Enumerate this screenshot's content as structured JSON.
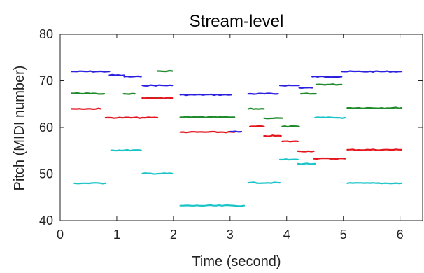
{
  "chart_data": {
    "type": "line",
    "title": "Stream-level",
    "xlabel": "Time (second)",
    "ylabel": "Pitch (MIDI number)",
    "xlim": [
      0,
      6.4
    ],
    "ylim": [
      40,
      80
    ],
    "xticks": [
      0,
      1,
      2,
      3,
      4,
      5,
      6
    ],
    "yticks": [
      40,
      50,
      60,
      70,
      80
    ],
    "grid": false,
    "legend": "none",
    "series": [
      {
        "color": "#2b1fe0",
        "segments": [
          {
            "x": [
              0.2,
              0.87
            ],
            "y": [
              72.0,
              72.0
            ]
          },
          {
            "x": [
              0.87,
              1.13
            ],
            "y": [
              71.2,
              71.2
            ]
          },
          {
            "x": [
              1.13,
              1.43
            ],
            "y": [
              70.9,
              70.9
            ]
          },
          {
            "x": [
              1.45,
              1.98
            ],
            "y": [
              69.0,
              69.0
            ]
          },
          {
            "x": [
              2.12,
              3.02
            ],
            "y": [
              67.0,
              67.0
            ]
          },
          {
            "x": [
              3.32,
              3.85
            ],
            "y": [
              67.2,
              67.2
            ]
          },
          {
            "x": [
              3.88,
              4.22
            ],
            "y": [
              69.0,
              69.0
            ]
          },
          {
            "x": [
              4.22,
              4.45
            ],
            "y": [
              68.5,
              68.5
            ]
          },
          {
            "x": [
              4.45,
              4.97
            ],
            "y": [
              70.9,
              70.9
            ]
          },
          {
            "x": [
              4.97,
              6.03
            ],
            "y": [
              72.0,
              72.0
            ]
          }
        ]
      },
      {
        "color": "#1e8a2a",
        "segments": [
          {
            "x": [
              0.2,
              0.52
            ],
            "y": [
              67.3,
              67.3
            ]
          },
          {
            "x": [
              0.52,
              0.78
            ],
            "y": [
              67.2,
              67.2
            ]
          },
          {
            "x": [
              1.12,
              1.32
            ],
            "y": [
              67.2,
              67.2
            ]
          },
          {
            "x": [
              1.45,
              1.73
            ],
            "y": [
              66.3,
              66.3
            ]
          },
          {
            "x": [
              1.72,
              1.98
            ],
            "y": [
              72.1,
              72.1
            ]
          },
          {
            "x": [
              2.12,
              3.08
            ],
            "y": [
              62.2,
              62.2
            ]
          },
          {
            "x": [
              3.32,
              3.6
            ],
            "y": [
              64.0,
              64.0
            ]
          },
          {
            "x": [
              3.6,
              3.92
            ],
            "y": [
              62.0,
              62.0
            ]
          },
          {
            "x": [
              3.92,
              4.22
            ],
            "y": [
              60.2,
              60.2
            ]
          },
          {
            "x": [
              4.25,
              4.52
            ],
            "y": [
              67.2,
              67.2
            ]
          },
          {
            "x": [
              4.52,
              4.97
            ],
            "y": [
              69.2,
              69.2
            ]
          },
          {
            "x": [
              5.07,
              6.03
            ],
            "y": [
              64.2,
              64.2
            ]
          }
        ]
      },
      {
        "color": "#e3161e",
        "segments": [
          {
            "x": [
              0.2,
              0.72
            ],
            "y": [
              64.0,
              64.0
            ]
          },
          {
            "x": [
              0.8,
              1.45
            ],
            "y": [
              62.1,
              62.1
            ]
          },
          {
            "x": [
              1.45,
              1.72
            ],
            "y": [
              62.1,
              62.1
            ]
          },
          {
            "x": [
              1.45,
              1.98
            ],
            "y": [
              66.3,
              66.3
            ]
          },
          {
            "x": [
              2.12,
              3.08
            ],
            "y": [
              59.0,
              59.0
            ]
          },
          {
            "x": [
              3.35,
              3.6
            ],
            "y": [
              60.2,
              60.2
            ]
          },
          {
            "x": [
              3.6,
              3.9
            ],
            "y": [
              58.2,
              58.2
            ]
          },
          {
            "x": [
              3.92,
              4.2
            ],
            "y": [
              57.0,
              57.0
            ]
          },
          {
            "x": [
              4.2,
              4.48
            ],
            "y": [
              54.9,
              54.9
            ]
          },
          {
            "x": [
              4.48,
              5.03
            ],
            "y": [
              53.3,
              53.3
            ]
          },
          {
            "x": [
              5.07,
              6.03
            ],
            "y": [
              55.2,
              55.2
            ]
          }
        ]
      },
      {
        "color": "#19c4c8",
        "segments": [
          {
            "x": [
              0.25,
              0.8
            ],
            "y": [
              48.0,
              48.0
            ]
          },
          {
            "x": [
              0.9,
              1.43
            ],
            "y": [
              55.1,
              55.1
            ]
          },
          {
            "x": [
              1.45,
              1.98
            ],
            "y": [
              50.1,
              50.1
            ]
          },
          {
            "x": [
              2.12,
              3.25
            ],
            "y": [
              43.2,
              43.2
            ]
          },
          {
            "x": [
              3.32,
              3.88
            ],
            "y": [
              48.1,
              48.1
            ]
          },
          {
            "x": [
              3.88,
              4.2
            ],
            "y": [
              53.1,
              53.1
            ]
          },
          {
            "x": [
              4.2,
              4.5
            ],
            "y": [
              52.2,
              52.2
            ]
          },
          {
            "x": [
              4.5,
              5.03
            ],
            "y": [
              62.1,
              62.1
            ]
          },
          {
            "x": [
              5.07,
              6.03
            ],
            "y": [
              48.0,
              48.0
            ]
          }
        ]
      },
      {
        "color": "#2b1fe0",
        "segments": [
          {
            "x": [
              3.0,
              3.2
            ],
            "y": [
              59.1,
              59.1
            ]
          }
        ]
      }
    ]
  }
}
